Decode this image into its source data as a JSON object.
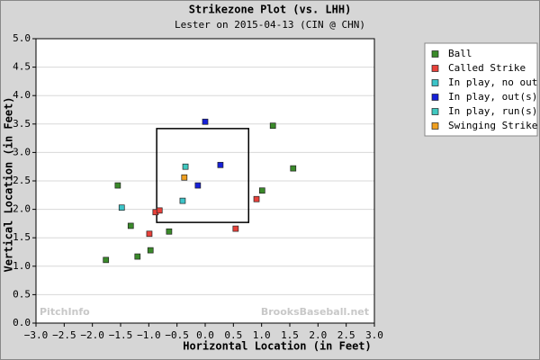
{
  "chart_data": {
    "type": "scatter",
    "title": "Strikezone Plot (vs. LHH)",
    "subtitle": "Lester on 2015-04-13 (CIN @ CHN)",
    "x_label": "Horizontal Location (in Feet)",
    "y_label": "Vertical Location (in Feet)",
    "watermarks": [
      "PitchInfo",
      "BrooksBaseball.net"
    ],
    "xlim": [
      -3,
      3
    ],
    "ylim": [
      0,
      5
    ],
    "xticks": [
      {
        "value": -3,
        "label": "−3.0"
      },
      {
        "value": -2.5,
        "label": "−2.5"
      },
      {
        "value": -2,
        "label": "−2.0"
      },
      {
        "value": -1.5,
        "label": "−1.5"
      },
      {
        "value": -1,
        "label": "−1.0"
      },
      {
        "value": -0.5,
        "label": "−0.5"
      },
      {
        "value": 0,
        "label": "0.0"
      },
      {
        "value": 0.5,
        "label": "0.5"
      },
      {
        "value": 1,
        "label": "1.0"
      },
      {
        "value": 1.5,
        "label": "1.5"
      },
      {
        "value": 2,
        "label": "2.0"
      },
      {
        "value": 2.5,
        "label": "2.5"
      },
      {
        "value": 3,
        "label": "3.0"
      }
    ],
    "yticks": [
      {
        "value": 0,
        "label": "0.0"
      },
      {
        "value": 0.5,
        "label": "0.5"
      },
      {
        "value": 1,
        "label": "1.0"
      },
      {
        "value": 1.5,
        "label": "1.5"
      },
      {
        "value": 2,
        "label": "2.0"
      },
      {
        "value": 2.5,
        "label": "2.5"
      },
      {
        "value": 3,
        "label": "3.0"
      },
      {
        "value": 3.5,
        "label": "3.5"
      },
      {
        "value": 4,
        "label": "4.0"
      },
      {
        "value": 4.5,
        "label": "4.5"
      },
      {
        "value": 5,
        "label": "5.0"
      }
    ],
    "grid": true,
    "legend": "right",
    "strike_zone": {
      "x": [
        -0.86,
        0.77
      ],
      "y": [
        1.77,
        3.42
      ]
    },
    "series": [
      {
        "name": "Ball",
        "color": "#3a8a2a",
        "x": [
          -1.55,
          -1.32,
          -1.76,
          -1.2,
          -0.97,
          -0.64,
          1.01,
          1.2,
          1.56
        ],
        "values": [
          2.42,
          1.71,
          1.11,
          1.17,
          1.28,
          1.61,
          2.33,
          3.47,
          2.72
        ]
      },
      {
        "name": "Called Strike",
        "color": "#e8413a",
        "x": [
          -0.99,
          -0.88,
          -0.81,
          0.54,
          0.91
        ],
        "values": [
          1.57,
          1.95,
          1.98,
          1.66,
          2.18
        ]
      },
      {
        "name": "In play, no out",
        "color": "#3cc4c8",
        "x": [
          -1.48,
          -0.4
        ],
        "values": [
          2.03,
          2.15
        ]
      },
      {
        "name": "In play, out(s)",
        "color": "#1620d8",
        "x": [
          -0.13,
          0.0,
          0.27
        ],
        "values": [
          2.42,
          3.54,
          2.78
        ]
      },
      {
        "name": "In play, run(s)",
        "color": "#40c8c0",
        "x": [
          -0.35
        ],
        "values": [
          2.75
        ]
      },
      {
        "name": "Swinging Strike",
        "color": "#f0a020",
        "x": [
          -0.37
        ],
        "values": [
          2.56
        ]
      }
    ]
  }
}
